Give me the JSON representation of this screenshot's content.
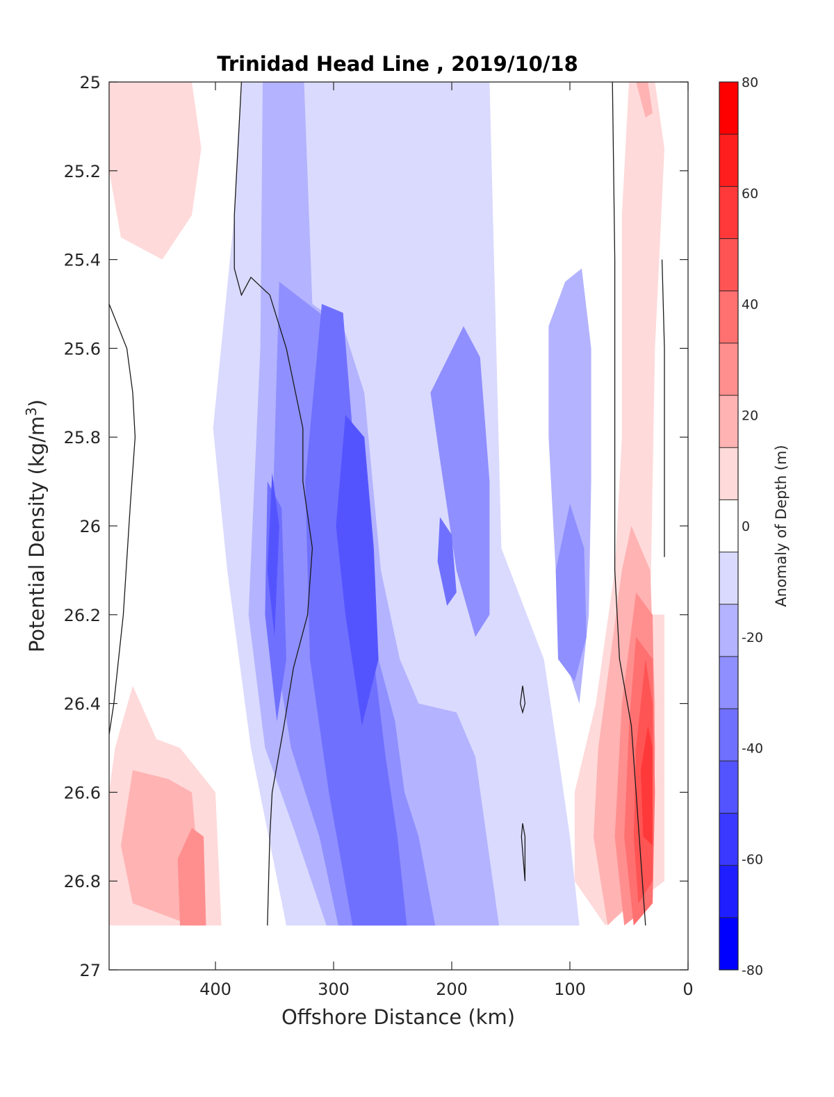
{
  "chart_data": {
    "type": "contour",
    "title": "Trinidad Head Line , 2019/10/18",
    "xlabel": "Offshore Distance (km)",
    "ylabel": "Potential Density (kg/m",
    "ylabel_sup": "3",
    "ylabel_close": ")",
    "x_reversed": true,
    "xlim": [
      0,
      490
    ],
    "ylim": [
      25,
      27
    ],
    "y_reversed": true,
    "xticks": [
      400,
      300,
      200,
      100,
      0
    ],
    "yticks": [
      25,
      25.2,
      25.4,
      25.6,
      25.8,
      26,
      26.2,
      26.4,
      26.6,
      26.8,
      27
    ],
    "colorbar": {
      "label": "Anomaly of Depth (m)",
      "ticks": [
        -80,
        -60,
        -40,
        -20,
        0,
        20,
        40,
        60,
        80
      ],
      "range": [
        -80,
        80
      ],
      "levels": [
        -80,
        -70,
        -60,
        -50,
        -40,
        -30,
        -20,
        -10,
        10,
        20,
        30,
        40,
        50,
        60,
        70,
        80
      ],
      "colors": [
        "#0000ff",
        "#1e1eff",
        "#3939ff",
        "#5454ff",
        "#7070ff",
        "#8f8fff",
        "#b3b3ff",
        "#dadaff",
        "#ffffff",
        "#ffdada",
        "#ffb3b3",
        "#ff8f8f",
        "#ff7070",
        "#ff5454",
        "#ff3939",
        "#ff1e1e",
        "#ff0000"
      ]
    },
    "regions": [
      {
        "level": -10,
        "points": [
          [
            378,
            25
          ],
          [
            168,
            25
          ],
          [
            158,
            26.05
          ],
          [
            122,
            26.3
          ],
          [
            108,
            26.55
          ],
          [
            100,
            26.7
          ],
          [
            92,
            26.9
          ],
          [
            340,
            26.9
          ],
          [
            370,
            26.5
          ],
          [
            390,
            26.1
          ],
          [
            402,
            25.78
          ],
          [
            384,
            25.3
          ]
        ]
      },
      {
        "level": -20,
        "points": [
          [
            360,
            25
          ],
          [
            325,
            25
          ],
          [
            318,
            25.5
          ],
          [
            292,
            25.55
          ],
          [
            274,
            25.7
          ],
          [
            260,
            26.1
          ],
          [
            244,
            26.3
          ],
          [
            228,
            26.4
          ],
          [
            196,
            26.42
          ],
          [
            180,
            26.52
          ],
          [
            160,
            26.9
          ],
          [
            306,
            26.9
          ],
          [
            334,
            26.68
          ],
          [
            358,
            26.5
          ],
          [
            372,
            26.2
          ],
          [
            362,
            25.6
          ]
        ]
      },
      {
        "level": -20,
        "points": [
          [
            104,
            25.45
          ],
          [
            90,
            25.42
          ],
          [
            82,
            25.6
          ],
          [
            82,
            25.9
          ],
          [
            84,
            26.2
          ],
          [
            92,
            26.4
          ],
          [
            104,
            26.3
          ],
          [
            112,
            26.1
          ],
          [
            118,
            25.8
          ],
          [
            118,
            25.55
          ]
        ]
      },
      {
        "level": -30,
        "points": [
          [
            346,
            25.45
          ],
          [
            312,
            25.52
          ],
          [
            292,
            25.6
          ],
          [
            280,
            25.9
          ],
          [
            262,
            26.3
          ],
          [
            248,
            26.44
          ],
          [
            240,
            26.6
          ],
          [
            228,
            26.7
          ],
          [
            214,
            26.9
          ],
          [
            296,
            26.9
          ],
          [
            312,
            26.7
          ],
          [
            336,
            26.5
          ],
          [
            354,
            26.2
          ]
        ]
      },
      {
        "level": -30,
        "points": [
          [
            190,
            25.55
          ],
          [
            176,
            25.62
          ],
          [
            168,
            25.9
          ],
          [
            168,
            26.2
          ],
          [
            180,
            26.25
          ],
          [
            196,
            26.1
          ],
          [
            210,
            25.85
          ],
          [
            218,
            25.7
          ]
        ]
      },
      {
        "level": -30,
        "points": [
          [
            100,
            25.95
          ],
          [
            88,
            26.05
          ],
          [
            86,
            26.25
          ],
          [
            96,
            26.35
          ],
          [
            110,
            26.3
          ],
          [
            112,
            26.1
          ]
        ]
      },
      {
        "level": -40,
        "points": [
          [
            310,
            25.5
          ],
          [
            292,
            25.52
          ],
          [
            282,
            25.85
          ],
          [
            266,
            26.3
          ],
          [
            256,
            26.52
          ],
          [
            246,
            26.7
          ],
          [
            238,
            26.9
          ],
          [
            284,
            26.9
          ],
          [
            304,
            26.6
          ],
          [
            320,
            26.3
          ],
          [
            324,
            25.9
          ]
        ]
      },
      {
        "level": -40,
        "points": [
          [
            356,
            25.9
          ],
          [
            344,
            25.96
          ],
          [
            340,
            26.3
          ],
          [
            348,
            26.44
          ],
          [
            358,
            26.2
          ]
        ]
      },
      {
        "level": -40,
        "points": [
          [
            210,
            25.98
          ],
          [
            200,
            26.02
          ],
          [
            196,
            26.15
          ],
          [
            204,
            26.18
          ],
          [
            212,
            26.08
          ]
        ]
      },
      {
        "level": -50,
        "points": [
          [
            290,
            25.75
          ],
          [
            274,
            25.8
          ],
          [
            266,
            26.05
          ],
          [
            262,
            26.3
          ],
          [
            276,
            26.45
          ],
          [
            290,
            26.2
          ],
          [
            298,
            26.0
          ]
        ]
      },
      {
        "level": -50,
        "points": [
          [
            352,
            25.88
          ],
          [
            346,
            26.0
          ],
          [
            350,
            26.25
          ],
          [
            356,
            26.1
          ]
        ]
      },
      {
        "level": 10,
        "points": [
          [
            490,
            25
          ],
          [
            420,
            25
          ],
          [
            412,
            25.15
          ],
          [
            420,
            25.3
          ],
          [
            445,
            25.4
          ],
          [
            480,
            25.35
          ],
          [
            490,
            25.2
          ]
        ]
      },
      {
        "level": 10,
        "points": [
          [
            470,
            26.36
          ],
          [
            485,
            26.5
          ],
          [
            490,
            26.6
          ],
          [
            490,
            26.9
          ],
          [
            395,
            26.9
          ],
          [
            400,
            26.6
          ],
          [
            430,
            26.5
          ],
          [
            450,
            26.48
          ]
        ]
      },
      {
        "level": 10,
        "points": [
          [
            50,
            25
          ],
          [
            28,
            25
          ],
          [
            20,
            25.15
          ],
          [
            28,
            25.6
          ],
          [
            32,
            26.2
          ],
          [
            20,
            26.2
          ],
          [
            20,
            26.8
          ],
          [
            70,
            26.9
          ],
          [
            96,
            26.8
          ],
          [
            96,
            26.6
          ],
          [
            78,
            26.4
          ],
          [
            62,
            26.1
          ],
          [
            56,
            25.8
          ],
          [
            56,
            25.3
          ]
        ]
      },
      {
        "level": 20,
        "points": [
          [
            470,
            26.55
          ],
          [
            480,
            26.72
          ],
          [
            470,
            26.85
          ],
          [
            420,
            26.9
          ],
          [
            410,
            26.9
          ],
          [
            420,
            26.6
          ],
          [
            440,
            26.57
          ]
        ]
      },
      {
        "level": 20,
        "points": [
          [
            44,
            25
          ],
          [
            34,
            25
          ],
          [
            30,
            25.07
          ],
          [
            36,
            25.08
          ]
        ]
      },
      {
        "level": 20,
        "points": [
          [
            48,
            26.0
          ],
          [
            32,
            26.1
          ],
          [
            28,
            26.4
          ],
          [
            30,
            26.8
          ],
          [
            68,
            26.9
          ],
          [
            80,
            26.7
          ],
          [
            76,
            26.5
          ],
          [
            66,
            26.3
          ],
          [
            56,
            26.1
          ]
        ]
      },
      {
        "level": 30,
        "points": [
          [
            420,
            26.68
          ],
          [
            410,
            26.7
          ],
          [
            408,
            26.9
          ],
          [
            430,
            26.9
          ],
          [
            432,
            26.75
          ]
        ]
      },
      {
        "level": 30,
        "points": [
          [
            44,
            26.15
          ],
          [
            30,
            26.2
          ],
          [
            28,
            26.5
          ],
          [
            30,
            26.85
          ],
          [
            54,
            26.9
          ],
          [
            62,
            26.7
          ],
          [
            56,
            26.4
          ]
        ]
      },
      {
        "level": 40,
        "points": [
          [
            44,
            26.25
          ],
          [
            30,
            26.3
          ],
          [
            28,
            26.6
          ],
          [
            30,
            26.85
          ],
          [
            46,
            26.9
          ],
          [
            54,
            26.7
          ],
          [
            50,
            26.45
          ]
        ]
      },
      {
        "level": 50,
        "points": [
          [
            36,
            26.3
          ],
          [
            30,
            26.4
          ],
          [
            30,
            26.8
          ],
          [
            42,
            26.85
          ],
          [
            46,
            26.7
          ],
          [
            44,
            26.5
          ]
        ]
      },
      {
        "level": 60,
        "points": [
          [
            34,
            26.45
          ],
          [
            30,
            26.5
          ],
          [
            30,
            26.72
          ],
          [
            38,
            26.7
          ],
          [
            40,
            26.55
          ]
        ]
      }
    ],
    "contour_lines": [
      [
        [
          378,
          25
        ],
        [
          384,
          25.3
        ],
        [
          384,
          25.42
        ],
        [
          378,
          25.48
        ],
        [
          370,
          25.44
        ],
        [
          354,
          25.48
        ],
        [
          340,
          25.6
        ],
        [
          326,
          25.78
        ],
        [
          326,
          25.9
        ],
        [
          318,
          26.05
        ],
        [
          322,
          26.2
        ],
        [
          334,
          26.32
        ],
        [
          342,
          26.45
        ],
        [
          352,
          26.6
        ],
        [
          354,
          26.7
        ],
        [
          356,
          26.9
        ]
      ],
      [
        [
          490,
          25.5
        ],
        [
          475,
          25.6
        ],
        [
          470,
          25.7
        ],
        [
          468,
          25.8
        ],
        [
          472,
          25.95
        ],
        [
          478,
          26.2
        ],
        [
          486,
          26.4
        ],
        [
          490,
          26.47
        ]
      ],
      [
        [
          64,
          25
        ],
        [
          62,
          25.4
        ],
        [
          62,
          26.1
        ],
        [
          58,
          26.3
        ],
        [
          48,
          26.45
        ],
        [
          44,
          26.6
        ],
        [
          40,
          26.75
        ],
        [
          36,
          26.9
        ]
      ],
      [
        [
          22,
          25.4
        ],
        [
          20,
          25.6
        ],
        [
          20,
          26.07
        ]
      ],
      [
        [
          140,
          26.36
        ],
        [
          138,
          26.4
        ],
        [
          140,
          26.42
        ],
        [
          142,
          26.4
        ],
        [
          140,
          26.36
        ]
      ],
      [
        [
          140,
          26.67
        ],
        [
          138,
          26.7
        ],
        [
          138,
          26.8
        ],
        [
          141,
          26.7
        ],
        [
          140,
          26.67
        ]
      ]
    ]
  }
}
